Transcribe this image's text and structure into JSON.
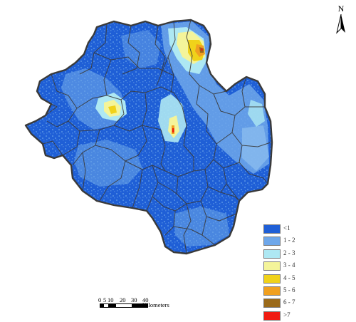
{
  "north_arrow": {
    "letter": "N"
  },
  "scale_bar": {
    "ticks": [
      "0",
      "5",
      "10",
      "20",
      "30",
      "40"
    ],
    "unit": "Kilometers"
  },
  "legend": {
    "items": [
      {
        "label": "<1",
        "color": "#1f5fd6"
      },
      {
        "label": "1 - 2",
        "color": "#6ea7ea"
      },
      {
        "label": "2 - 3",
        "color": "#aee8f3"
      },
      {
        "label": "3 - 4",
        "color": "#f4f49a"
      },
      {
        "label": "4 - 5",
        "color": "#f0d21a"
      },
      {
        "label": "5 - 6",
        "color": "#f0a020"
      },
      {
        "label": "6 - 7",
        "color": "#9a6a1a"
      },
      {
        "label": ">7",
        "color": "#f01c12"
      }
    ]
  },
  "map": {
    "base_color": "#1f5fd6",
    "boundary_color": "#3a3a3a"
  }
}
